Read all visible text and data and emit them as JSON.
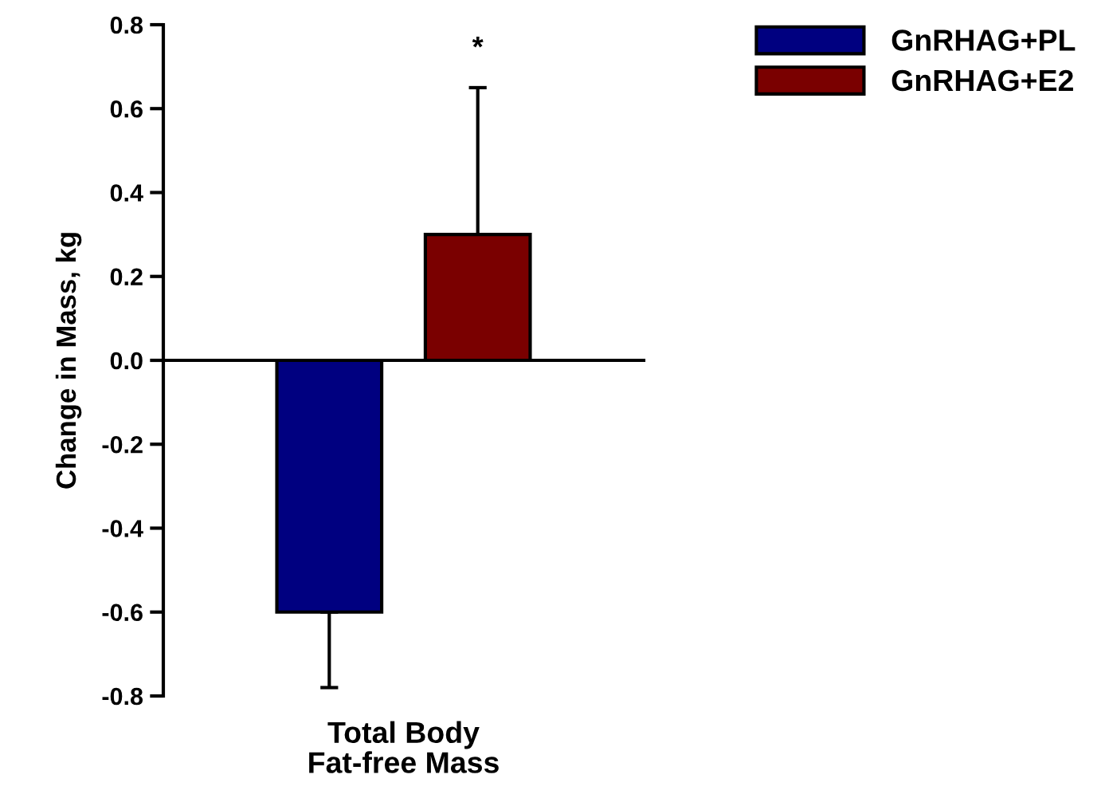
{
  "chart_data": {
    "type": "bar",
    "ylabel": "Change in Mass, kg",
    "categories": [
      "Total Body\nFat-free Mass"
    ],
    "series": [
      {
        "name": "GnRHAG+PL",
        "color": "#000080",
        "values": [
          -0.6
        ],
        "errors": [
          [
            -0.78,
            -0.6
          ]
        ]
      },
      {
        "name": "GnRHAG+E2",
        "color": "#7a0000",
        "values": [
          0.3
        ],
        "errors": [
          [
            0.3,
            0.65
          ]
        ]
      }
    ],
    "ylim": [
      -0.8,
      0.8
    ],
    "yticks": [
      {
        "value": -0.8,
        "label": "-0.8"
      },
      {
        "value": -0.6,
        "label": "-0.6"
      },
      {
        "value": -0.4,
        "label": "-0.4"
      },
      {
        "value": -0.2,
        "label": "-0.2"
      },
      {
        "value": 0,
        "label": "0.0"
      },
      {
        "value": 0.2,
        "label": "0.2"
      },
      {
        "value": 0.4,
        "label": "0.4"
      },
      {
        "value": 0.6,
        "label": "0.6"
      },
      {
        "value": 0.8,
        "label": "0.8"
      }
    ],
    "annotations": [
      "*"
    ],
    "legend": "top right"
  }
}
